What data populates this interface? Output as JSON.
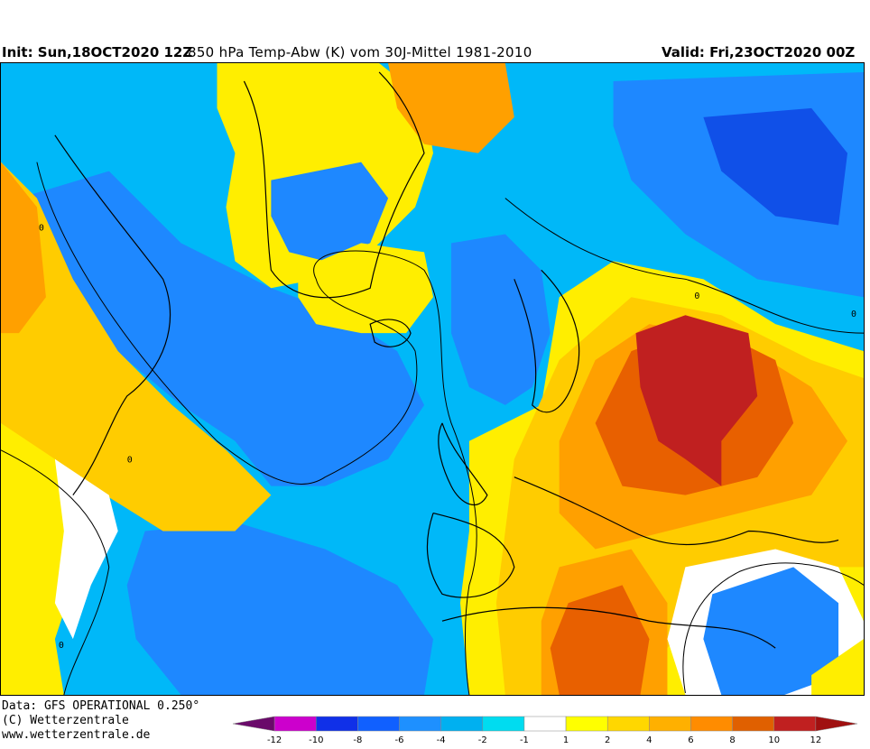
{
  "header": {
    "init": "Init: Sun,18OCT2020 12Z",
    "title": "850 hPa Temp-Abw (K) vom 30J-Mittel 1981-2010",
    "valid": "Valid: Fri,23OCT2020 00Z"
  },
  "footer": {
    "data_source": "Data: GFS OPERATIONAL 0.250°",
    "copyright": "(C) Wetterzentrale",
    "url": "www.wetterzentrale.de"
  },
  "legend": {
    "ticks": [
      "-12",
      "-10",
      "-8",
      "-6",
      "-4",
      "-2",
      "-1",
      "1",
      "2",
      "4",
      "6",
      "8",
      "10",
      "12"
    ],
    "colors": [
      "#6a0a6a",
      "#cc00cc",
      "#1030e8",
      "#1060ff",
      "#1e90ff",
      "#00b0f0",
      "#00dcf0",
      "#ffffff",
      "#ffff00",
      "#ffd700",
      "#ffb000",
      "#ff8c00",
      "#e06000",
      "#c02020",
      "#a01010"
    ]
  },
  "map": {
    "colors": {
      "deep_blue": "#1050e8",
      "blue": "#1e88ff",
      "light_blue": "#00b8f8",
      "cyan": "#00dcf0",
      "white": "#ffffff",
      "yellow": "#ffee00",
      "gold": "#ffcc00",
      "orange": "#ffa000",
      "dark_orange": "#e86000",
      "red": "#c02020",
      "dark_red": "#a01818"
    },
    "contour_label": "0"
  }
}
